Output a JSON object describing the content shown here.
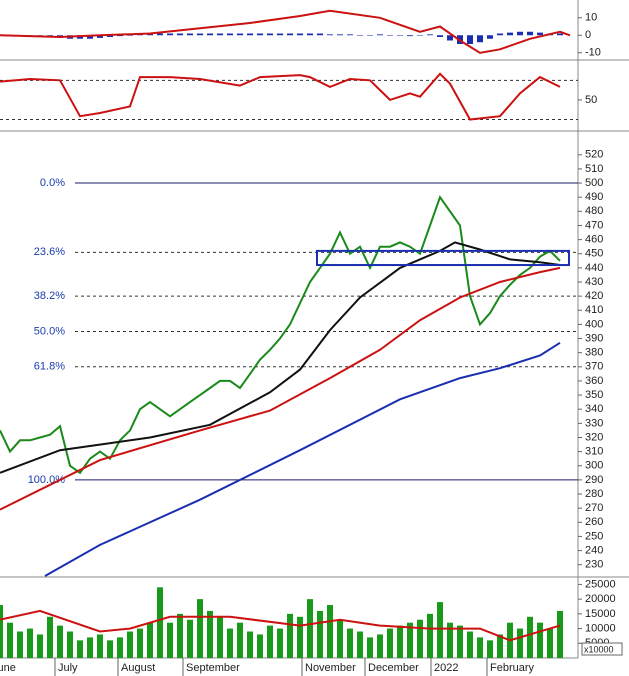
{
  "chart_data": [
    {
      "type": "combo",
      "ylim": [
        -13,
        19
      ],
      "yticks": [
        10,
        0,
        -10
      ],
      "xlim": [
        0,
        57.8
      ],
      "x": [
        0,
        1,
        2,
        3,
        4,
        5,
        6,
        7,
        8,
        9,
        10,
        11,
        12,
        13,
        14,
        15,
        16,
        17,
        18,
        19,
        20,
        21,
        22,
        23,
        24,
        25,
        26,
        27,
        28,
        29,
        30,
        31,
        32,
        33,
        34,
        35,
        36,
        37,
        38,
        39,
        40,
        41,
        42,
        43,
        44,
        45,
        46,
        47,
        48,
        49,
        50,
        51,
        52,
        53,
        54,
        55,
        56
      ],
      "series": [
        {
          "type": "bar",
          "color": "#1a2fb0",
          "values": [
            0,
            0,
            0,
            0,
            0,
            -1,
            -1.5,
            -2,
            -2,
            -2,
            -1.5,
            -1,
            -0.5,
            0,
            0.5,
            1,
            1,
            1,
            1,
            1,
            1,
            1,
            1,
            1,
            1,
            1,
            1,
            1,
            1,
            1,
            1,
            1,
            1,
            0.5,
            0.5,
            0.5,
            0,
            0,
            0.5,
            0,
            0,
            -0.5,
            0,
            0.5,
            -1,
            -3,
            -5,
            -5,
            -4,
            -2,
            1,
            1.5,
            2,
            2,
            1.5,
            1,
            1
          ]
        },
        {
          "type": "line",
          "color": "#cc1111",
          "x": [
            0,
            6,
            10,
            15,
            20,
            25,
            30,
            33,
            38,
            42,
            44,
            46,
            48,
            50,
            53,
            56,
            57
          ],
          "values": [
            0,
            -1,
            0,
            1,
            4,
            7,
            11,
            14,
            10,
            2,
            5,
            -3,
            -10,
            -8,
            -2,
            2,
            0
          ]
        }
      ]
    },
    {
      "type": "combo",
      "ylim": [
        7,
        105
      ],
      "yticks": [
        50
      ],
      "levels": [
        80,
        20
      ],
      "xlim": [
        0,
        57.8
      ],
      "series": [
        {
          "type": "line",
          "color": "#cc1111",
          "x": [
            0,
            3,
            6,
            8,
            10,
            13,
            14,
            17,
            20,
            24,
            26,
            30,
            31,
            33,
            35,
            37,
            39,
            41,
            42,
            44,
            45,
            47,
            50,
            52,
            54,
            56
          ],
          "values": [
            78,
            82,
            80,
            25,
            30,
            40,
            85,
            85,
            82,
            72,
            85,
            88,
            85,
            70,
            82,
            80,
            50,
            60,
            55,
            90,
            75,
            20,
            25,
            60,
            85,
            70
          ]
        }
      ]
    },
    {
      "type": "combo",
      "ylim": [
        222,
        534
      ],
      "xlim": [
        0,
        57.8
      ],
      "yticks": [
        230,
        240,
        250,
        260,
        270,
        280,
        290,
        300,
        310,
        320,
        330,
        340,
        350,
        360,
        370,
        380,
        390,
        400,
        410,
        420,
        430,
        440,
        450,
        460,
        470,
        480,
        490,
        500,
        510,
        520
      ],
      "fib_levels": [
        {
          "value": 500,
          "label": "0.0%"
        },
        {
          "value": 451,
          "label": "23.6%"
        },
        {
          "value": 420,
          "label": "38.2%"
        },
        {
          "value": 395,
          "label": "50.0%"
        },
        {
          "value": 370,
          "label": "61.8%"
        },
        {
          "value": 290,
          "label": "100.0%"
        }
      ],
      "box": {
        "x": [
          31.7,
          56.9
        ],
        "y": [
          442,
          452
        ]
      },
      "x": [
        0,
        1,
        2,
        3,
        4,
        5,
        6,
        7,
        8,
        9,
        10,
        11,
        12,
        13,
        14,
        15,
        16,
        17,
        18,
        19,
        20,
        21,
        22,
        23,
        24,
        25,
        26,
        27,
        28,
        29,
        30,
        31,
        32,
        33,
        34,
        35,
        36,
        37,
        38,
        39,
        40,
        41,
        42,
        43,
        44,
        45,
        46,
        47,
        48,
        49,
        50,
        51,
        52,
        53,
        54,
        55,
        56
      ],
      "series": [
        {
          "type": "line",
          "color": "#1a8a1a",
          "values": [
            325,
            310,
            318,
            318,
            320,
            322,
            328,
            300,
            295,
            305,
            310,
            305,
            318,
            325,
            340,
            345,
            340,
            335,
            340,
            345,
            350,
            355,
            360,
            360,
            355,
            365,
            375,
            382,
            390,
            400,
            415,
            430,
            440,
            450,
            465,
            450,
            455,
            440,
            455,
            455,
            458,
            455,
            450,
            470,
            490,
            480,
            470,
            420,
            400,
            408,
            420,
            428,
            435,
            440,
            448,
            452,
            445
          ]
        },
        {
          "type": "line",
          "color": "#111111",
          "x": [
            0,
            6,
            15,
            21,
            27,
            30,
            33,
            36,
            40,
            44,
            45.5,
            48,
            51,
            54,
            56
          ],
          "values": [
            295,
            311,
            320,
            329,
            352,
            368,
            396,
            419,
            440,
            452,
            458,
            453,
            446,
            444,
            442
          ]
        },
        {
          "type": "line",
          "color": "#cc1111",
          "x": [
            0,
            10,
            20,
            27,
            33,
            38,
            42,
            46,
            50,
            54,
            56
          ],
          "values": [
            269,
            304,
            325,
            339,
            362,
            382,
            403,
            419,
            430,
            437,
            440
          ]
        },
        {
          "type": "line",
          "color": "#1a2fb0",
          "x": [
            4.5,
            10,
            20,
            30,
            40,
            46,
            50,
            54,
            56
          ],
          "values": [
            222,
            244,
            276,
            311,
            347,
            362,
            369,
            378,
            387
          ]
        }
      ]
    },
    {
      "type": "combo",
      "ylim": [
        0,
        26500
      ],
      "xlim": [
        0,
        57.8
      ],
      "unit_label": "x10000",
      "yticks": [
        5000,
        10000,
        15000,
        20000,
        25000
      ],
      "xticks": [
        {
          "value": -1.1,
          "label": "June"
        },
        {
          "value": 5.5,
          "label": "July"
        },
        {
          "value": 11.8,
          "label": "August"
        },
        {
          "value": 18.3,
          "label": "September"
        },
        {
          "value": 30.2,
          "label": "November"
        },
        {
          "value": 36.5,
          "label": "December"
        },
        {
          "value": 43.1,
          "label": "2022"
        },
        {
          "value": 48.7,
          "label": "February"
        }
      ],
      "x": [
        0,
        1,
        2,
        3,
        4,
        5,
        6,
        7,
        8,
        9,
        10,
        11,
        12,
        13,
        14,
        15,
        16,
        17,
        18,
        19,
        20,
        21,
        22,
        23,
        24,
        25,
        26,
        27,
        28,
        29,
        30,
        31,
        32,
        33,
        34,
        35,
        36,
        37,
        38,
        39,
        40,
        41,
        42,
        43,
        44,
        45,
        46,
        47,
        48,
        49,
        50,
        51,
        52,
        53,
        54,
        55,
        56
      ],
      "series": [
        {
          "type": "bar",
          "color": "#1a9a1a",
          "values": [
            18000,
            12000,
            9000,
            10000,
            8000,
            14000,
            11000,
            9000,
            6000,
            7000,
            8000,
            6000,
            7000,
            9000,
            10000,
            12000,
            24000,
            12000,
            15000,
            13000,
            20000,
            16000,
            14000,
            10000,
            12000,
            9000,
            8000,
            11000,
            10000,
            15000,
            14000,
            20000,
            16000,
            18000,
            13000,
            10000,
            9000,
            7000,
            8000,
            10000,
            11000,
            12000,
            13000,
            15000,
            19000,
            12000,
            11000,
            9000,
            7000,
            6000,
            8000,
            12000,
            10000,
            14000,
            12000,
            10000,
            16000
          ]
        },
        {
          "type": "line",
          "color": "#cc1111",
          "x": [
            0,
            4,
            10,
            13,
            17,
            23,
            30,
            34,
            38,
            43,
            48,
            51,
            56
          ],
          "values": [
            13000,
            16000,
            9000,
            10000,
            14000,
            14000,
            11000,
            13000,
            11000,
            10000,
            10000,
            6000,
            11000
          ]
        }
      ]
    }
  ]
}
